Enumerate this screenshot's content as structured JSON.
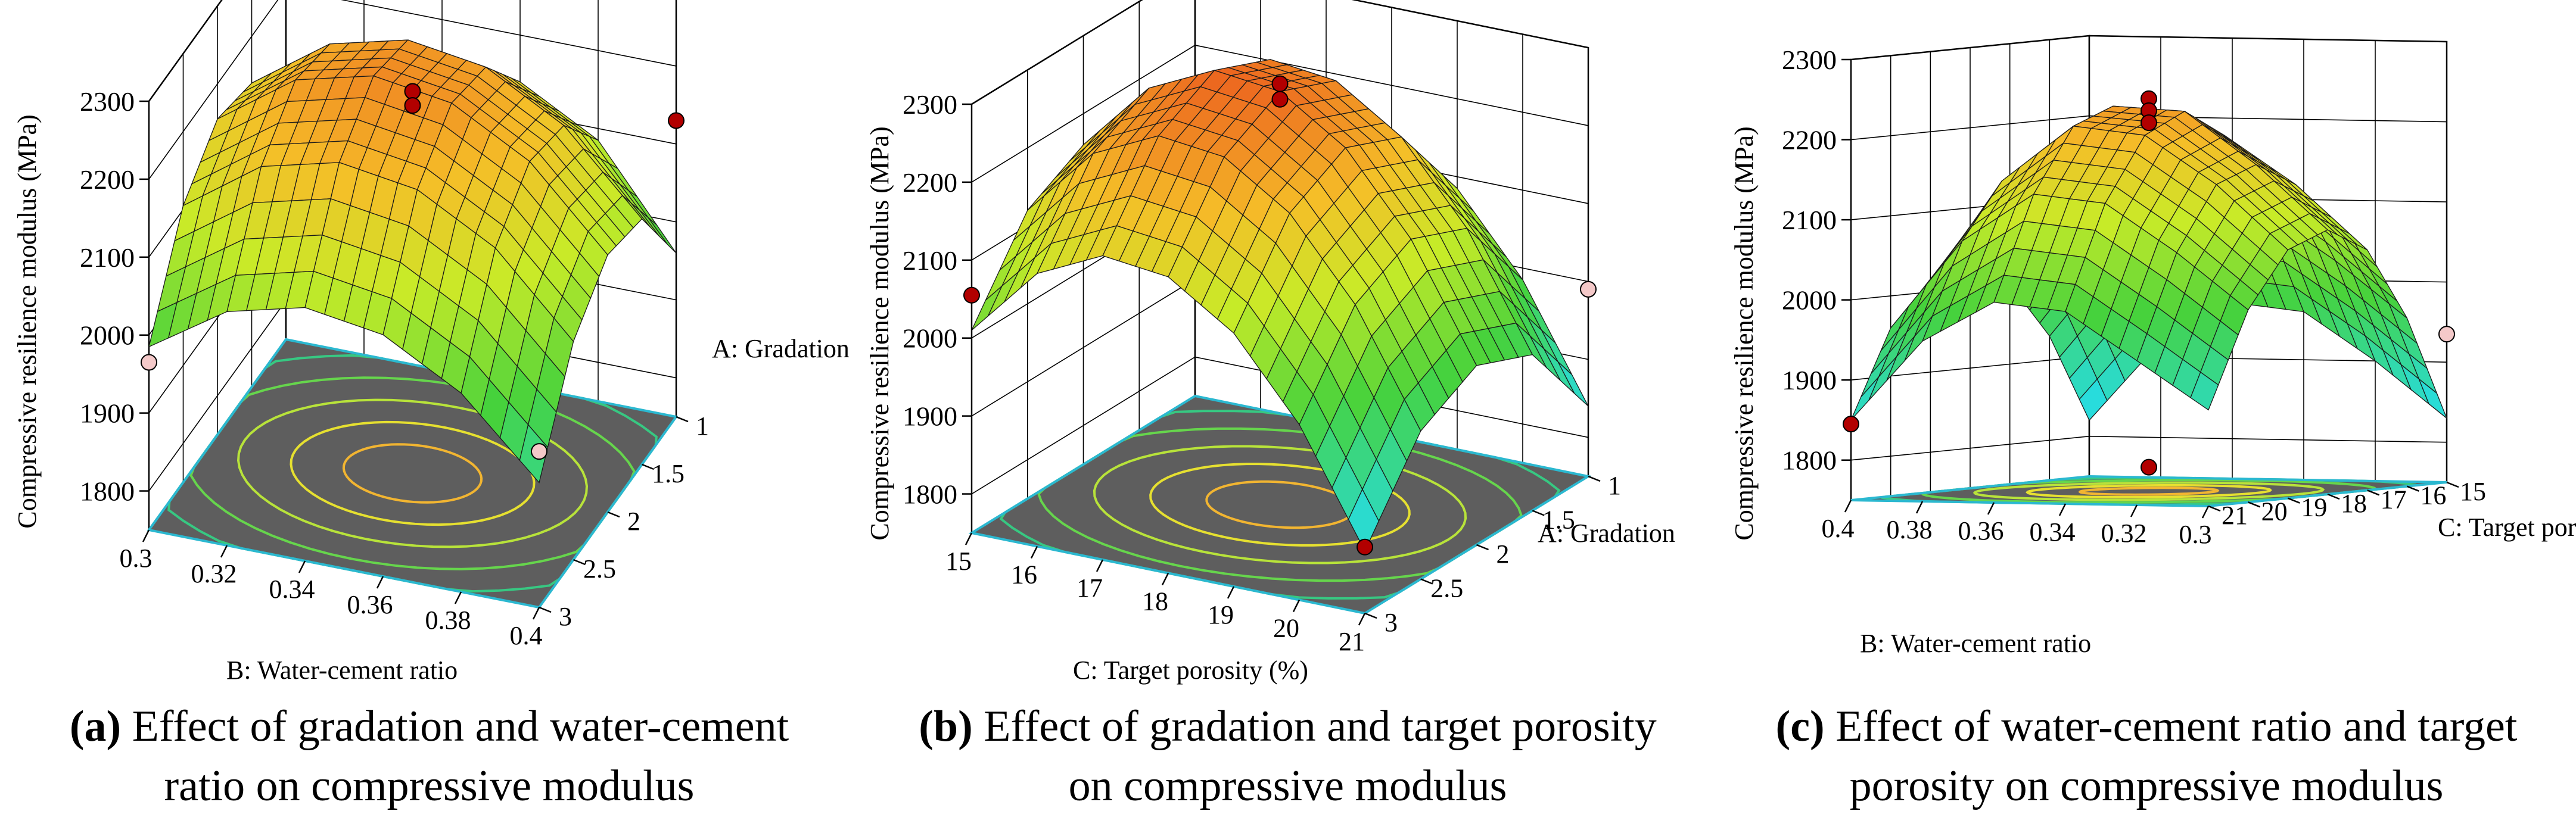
{
  "chart_data": [
    {
      "type": "surface3d",
      "id": "a",
      "zlabel": "Compressive resilience modulus (MPa)",
      "zticks": [
        "1800",
        "1900",
        "2000",
        "2100",
        "2200",
        "2300"
      ],
      "xlabel": "B: Water-cement ratio",
      "xticks": [
        "0.3",
        "0.32",
        "0.34",
        "0.36",
        "0.38",
        "0.4"
      ],
      "ylabel": "A: Gradation",
      "yticks": [
        "1",
        "1.5",
        "2",
        "2.5",
        "3"
      ],
      "zlim": [
        1750,
        2300
      ],
      "caption_tag": "(a)",
      "caption_line1": "Effect of gradation and water-cement",
      "caption_line2": "ratio on compressive modulus",
      "surface": [
        [
          1985,
          2105,
          2155,
          2140,
          2060
        ],
        [
          2050,
          2175,
          2225,
          2210,
          2130
        ],
        [
          2075,
          2200,
          2250,
          2235,
          2155
        ],
        [
          2060,
          2185,
          2235,
          2220,
          2140
        ],
        [
          2005,
          2130,
          2180,
          2165,
          2085
        ],
        [
          1910,
          2030,
          2080,
          2065,
          1960
        ]
      ],
      "points": [
        {
          "x": 0.32,
          "y": 1.0,
          "z": 2255,
          "above": true
        },
        {
          "x": 0.35,
          "y": 2.0,
          "z": 2240,
          "above": true
        },
        {
          "x": 0.35,
          "y": 2.0,
          "z": 2222,
          "above": true
        },
        {
          "x": 0.4,
          "y": 1.0,
          "z": 2130,
          "above": true
        },
        {
          "x": 0.3,
          "y": 3.0,
          "z": 1965,
          "above": false
        },
        {
          "x": 0.4,
          "y": 3.0,
          "z": 1950,
          "above": false
        }
      ]
    },
    {
      "type": "surface3d",
      "id": "b",
      "zlabel": "Compressive resilience modulus (MPa)",
      "zticks": [
        "1800",
        "1900",
        "2000",
        "2100",
        "2200",
        "2300"
      ],
      "xlabel": "C: Target porosity (%)",
      "xticks": [
        "15",
        "16",
        "17",
        "18",
        "19",
        "20",
        "21"
      ],
      "ylabel": "A: Gradation",
      "yticks": [
        "1",
        "1.5",
        "2",
        "2.5",
        "3"
      ],
      "zlim": [
        1750,
        2300
      ],
      "caption_tag": "(b)",
      "caption_line1": "Effect of gradation and target porosity",
      "caption_line2": "on compressive modulus",
      "surface": [
        [
          2010,
          2120,
          2160,
          2130,
          2020
        ],
        [
          2100,
          2210,
          2250,
          2220,
          2110
        ],
        [
          2140,
          2250,
          2290,
          2260,
          2150
        ],
        [
          2130,
          2240,
          2280,
          2250,
          2140
        ],
        [
          2075,
          2185,
          2225,
          2195,
          2085
        ],
        [
          1975,
          2085,
          2125,
          2095,
          1985
        ],
        [
          1830,
          1940,
          1980,
          1950,
          1840
        ]
      ],
      "points": [
        {
          "x": 15,
          "y": 3.0,
          "z": 2055,
          "above": true
        },
        {
          "x": 18,
          "y": 2.0,
          "z": 2290,
          "above": true
        },
        {
          "x": 18,
          "y": 2.0,
          "z": 2270,
          "above": true
        },
        {
          "x": 21,
          "y": 1.0,
          "z": 1990,
          "above": false
        },
        {
          "x": 21,
          "y": 3.0,
          "z": 1835,
          "above": true
        }
      ]
    },
    {
      "type": "surface3d",
      "id": "c",
      "zlabel": "Compressive resilience modulus (MPa)",
      "zticks": [
        "1800",
        "1900",
        "2000",
        "2100",
        "2200",
        "2300"
      ],
      "xlabel": "B: Water-cement ratio",
      "xticks": [
        "0.4",
        "0.38",
        "0.36",
        "0.34",
        "0.32",
        "0.3"
      ],
      "ylabel": "C: Target porosity (%)",
      "yticks": [
        "15",
        "16",
        "17",
        "18",
        "19",
        "20",
        "21"
      ],
      "zlim": [
        1750,
        2300
      ],
      "caption_tag": "(c)",
      "caption_line1": "Effect of water-cement ratio and target",
      "caption_line2": "porosity on compressive modulus",
      "surface": [
        [
          1850,
          1960,
          2010,
          2020,
          2000,
          1930,
          1820
        ],
        [
          1950,
          2070,
          2140,
          2160,
          2130,
          2040,
          1920
        ],
        [
          2000,
          2130,
          2210,
          2230,
          2200,
          2100,
          1970
        ],
        [
          1990,
          2120,
          2200,
          2225,
          2190,
          2090,
          1960
        ],
        [
          1930,
          2060,
          2140,
          2160,
          2130,
          2030,
          1900
        ],
        [
          1870,
          1990,
          2060,
          2080,
          2050,
          1960,
          1830
        ]
      ],
      "points": [
        {
          "x": 0.4,
          "y": 21,
          "z": 1845,
          "above": true
        },
        {
          "x": 0.35,
          "y": 18,
          "z": 2240,
          "above": true
        },
        {
          "x": 0.35,
          "y": 18,
          "z": 2225,
          "above": true
        },
        {
          "x": 0.35,
          "y": 18,
          "z": 2210,
          "above": true
        },
        {
          "x": 0.3,
          "y": 15,
          "z": 1935,
          "above": false
        },
        {
          "x": 0.35,
          "y": 18,
          "z": 1780,
          "above": true
        }
      ]
    }
  ]
}
